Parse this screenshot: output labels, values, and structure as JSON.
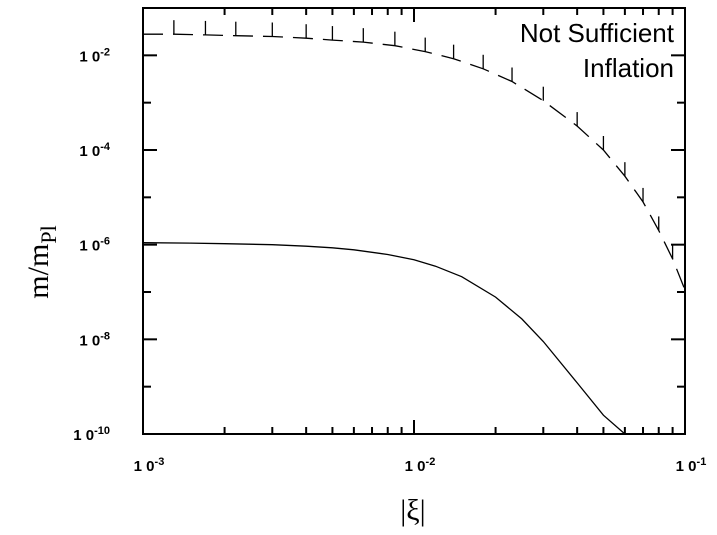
{
  "chart_data": {
    "type": "line",
    "title": "",
    "xlabel": "|ξ|",
    "ylabel": {
      "main": "m/m",
      "sub": "Pl"
    },
    "xscale": "log",
    "yscale": "log",
    "xlim": [
      0.001,
      0.1
    ],
    "ylim": [
      1e-10,
      0.1
    ],
    "grid": false,
    "x_ticks": [
      {
        "base": "1 0",
        "exp": "-3",
        "value": 0.001
      },
      {
        "base": "1 0",
        "exp": "-2",
        "value": 0.01
      },
      {
        "base": "1 0",
        "exp": "-1",
        "value": 0.1
      }
    ],
    "y_ticks": [
      {
        "base": "1 0",
        "exp": "-10",
        "value": 1e-10
      },
      {
        "base": "1 0",
        "exp": "-8",
        "value": 1e-08
      },
      {
        "base": "1 0",
        "exp": "-6",
        "value": 1e-06
      },
      {
        "base": "1 0",
        "exp": "-4",
        "value": 0.0001
      },
      {
        "base": "1 0",
        "exp": "-2",
        "value": 0.01
      }
    ],
    "annotation": {
      "lines": [
        "Not Sufficient",
        "Inflation"
      ],
      "position": "top-right"
    },
    "series": [
      {
        "style": "dashed-hatched",
        "x": [
          0.001,
          0.0013,
          0.0017,
          0.0022,
          0.003,
          0.004,
          0.005,
          0.0065,
          0.0085,
          0.011,
          0.014,
          0.018,
          0.023,
          0.03,
          0.04,
          0.05,
          0.06,
          0.07,
          0.08,
          0.09,
          0.1
        ],
        "y": [
          0.028,
          0.028,
          0.027,
          0.026,
          0.025,
          0.023,
          0.021,
          0.019,
          0.016,
          0.012,
          0.0085,
          0.0052,
          0.0028,
          0.0011,
          0.00032,
          0.0001,
          2.8e-05,
          8e-06,
          2e-06,
          5e-07,
          1.1e-07
        ]
      },
      {
        "style": "solid",
        "x": [
          0.001,
          0.0015,
          0.002,
          0.003,
          0.004,
          0.005,
          0.006,
          0.008,
          0.01,
          0.012,
          0.015,
          0.02,
          0.025,
          0.03,
          0.04,
          0.05,
          0.06
        ],
        "y": [
          1.1e-06,
          1.08e-06,
          1.05e-06,
          1e-06,
          9.3e-07,
          8.6e-07,
          7.8e-07,
          6.2e-07,
          4.8e-07,
          3.5e-07,
          2.1e-07,
          7.8e-08,
          2.7e-08,
          9e-09,
          1.2e-09,
          2.5e-10,
          1e-10
        ]
      }
    ]
  }
}
